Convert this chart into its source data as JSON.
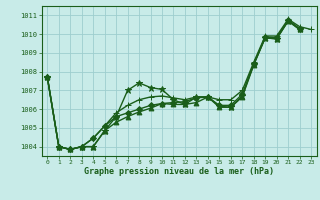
{
  "title": "Graphe pression niveau de la mer (hPa)",
  "bg_color": "#c8ebe8",
  "grid_color": "#9ecece",
  "line_color": "#1a5e1a",
  "xlim": [
    -0.5,
    23.5
  ],
  "ylim": [
    1003.5,
    1011.5
  ],
  "yticks": [
    1004,
    1005,
    1006,
    1007,
    1008,
    1009,
    1010,
    1011
  ],
  "xticks": [
    0,
    1,
    2,
    3,
    4,
    5,
    6,
    7,
    8,
    9,
    10,
    11,
    12,
    13,
    14,
    15,
    16,
    17,
    18,
    19,
    20,
    21,
    22,
    23
  ],
  "series": [
    {
      "y": [
        1007.7,
        1004.0,
        1003.85,
        1004.0,
        1004.0,
        1004.85,
        1005.6,
        1007.0,
        1007.4,
        1007.15,
        1007.05,
        1006.5,
        1006.25,
        1006.65,
        1006.65,
        1006.15,
        1006.1,
        1006.7,
        1008.4,
        1009.8,
        1009.75,
        1010.7,
        1010.25,
        null
      ],
      "marker": "*",
      "ms": 4.5,
      "lw": 1.0
    },
    {
      "y": [
        1007.7,
        1004.0,
        1003.85,
        1004.0,
        1004.0,
        1004.85,
        1005.3,
        1005.6,
        1005.85,
        1006.05,
        1006.3,
        1006.25,
        1006.25,
        1006.35,
        1006.65,
        1006.1,
        1006.1,
        1006.65,
        1008.35,
        1009.8,
        1009.75,
        1010.7,
        1010.25,
        null
      ],
      "marker": "^",
      "ms": 3.5,
      "lw": 1.0
    },
    {
      "y": [
        1007.7,
        1004.0,
        1003.85,
        1004.0,
        1004.45,
        1005.1,
        1005.6,
        1005.8,
        1006.0,
        1006.2,
        1006.3,
        1006.35,
        1006.4,
        1006.6,
        1006.65,
        1006.2,
        1006.2,
        1006.8,
        1008.4,
        1009.85,
        1009.8,
        1010.75,
        1010.3,
        null
      ],
      "marker": "D",
      "ms": 3.0,
      "lw": 1.0
    },
    {
      "y": [
        1007.7,
        1004.0,
        1003.85,
        1004.0,
        1004.45,
        1005.1,
        1005.8,
        1006.2,
        1006.5,
        1006.65,
        1006.7,
        1006.6,
        1006.5,
        1006.65,
        1006.65,
        1006.5,
        1006.5,
        1007.0,
        1008.5,
        1009.9,
        1009.9,
        1010.8,
        1010.4,
        1010.25
      ],
      "marker": "+",
      "ms": 5.0,
      "lw": 1.0
    }
  ],
  "title_fontsize": 6,
  "tick_fontsize": 4.5,
  "xlabel_pad": 1
}
